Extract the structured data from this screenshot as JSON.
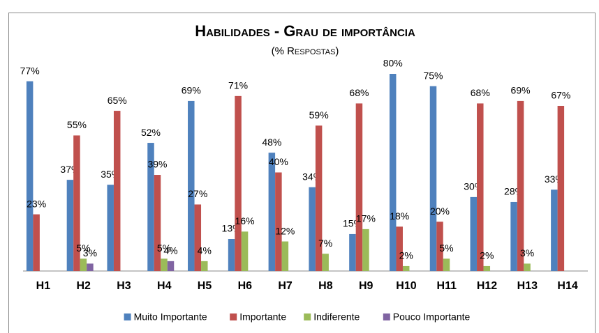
{
  "chart_data": {
    "type": "bar",
    "title": "Habilidades - Grau de importância",
    "subtitle": "(% Respostas)",
    "categories": [
      "H1",
      "H2",
      "H3",
      "H4",
      "H5",
      "H6",
      "H7",
      "H8",
      "H9",
      "H10",
      "H11",
      "H12",
      "H13",
      "H14"
    ],
    "series": [
      {
        "name": "Muito Importante",
        "color": "#4f81bd",
        "values": [
          77,
          37,
          35,
          52,
          69,
          13,
          48,
          34,
          15,
          80,
          75,
          30,
          28,
          33
        ],
        "value_labels": [
          "77%",
          "37%",
          "35%",
          "52%",
          "69%",
          "13%",
          "48%",
          "34%",
          "15%",
          "80%",
          "75%",
          "30%",
          "28%",
          "33%"
        ]
      },
      {
        "name": "Importante",
        "color": "#c0504d",
        "values": [
          23,
          55,
          65,
          39,
          27,
          71,
          40,
          59,
          68,
          18,
          20,
          68,
          69,
          67
        ],
        "value_labels": [
          "23%",
          "55%",
          "65%",
          "39%",
          "27%",
          "71%",
          "40%",
          "59%",
          "68%",
          "18%",
          "20%",
          "68%",
          "69%",
          "67%"
        ]
      },
      {
        "name": "Indiferente",
        "color": "#9bbb59",
        "values": [
          null,
          5,
          null,
          5,
          4,
          16,
          12,
          7,
          17,
          2,
          5,
          2,
          3,
          null
        ],
        "value_labels": [
          null,
          "5%",
          null,
          "5%",
          "4%",
          "16%",
          "12%",
          "7%",
          "17%",
          "2%",
          "5%",
          "2%",
          "3%",
          null
        ]
      },
      {
        "name": "Pouco Importante",
        "color": "#8064a2",
        "values": [
          null,
          3,
          null,
          4,
          null,
          null,
          null,
          null,
          null,
          null,
          null,
          null,
          null,
          null
        ],
        "value_labels": [
          null,
          "3%",
          null,
          "4%",
          null,
          null,
          null,
          null,
          null,
          null,
          null,
          null,
          null,
          null
        ]
      }
    ],
    "legend": "bottom"
  }
}
